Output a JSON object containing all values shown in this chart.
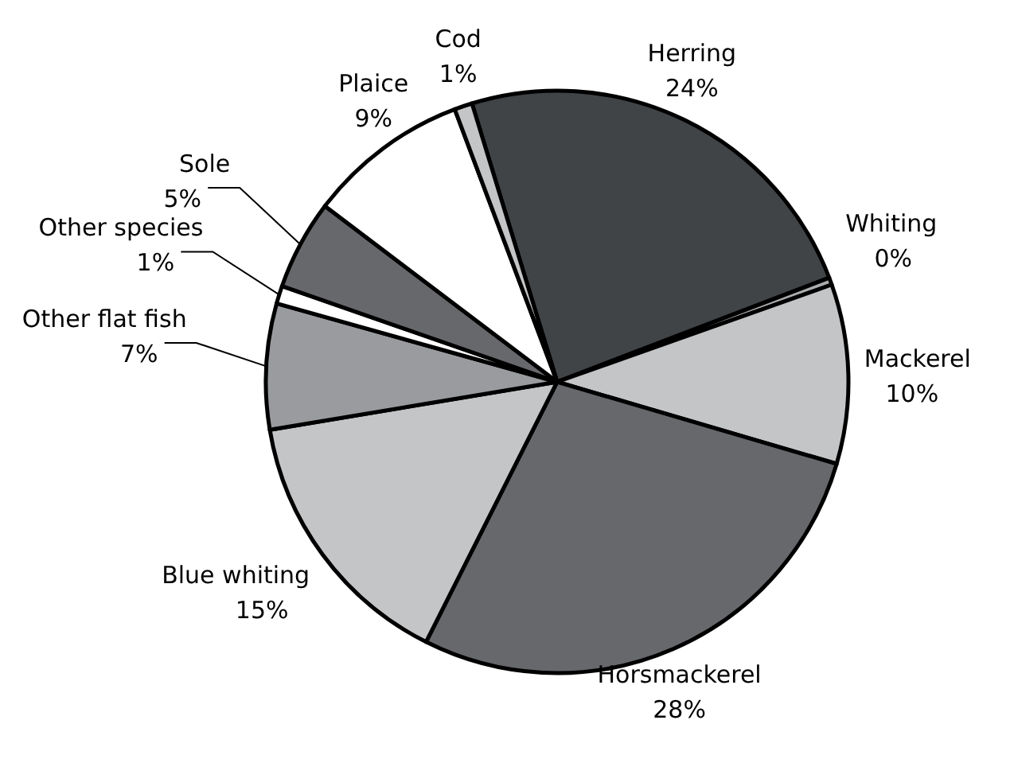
{
  "chart_data": {
    "type": "pie",
    "categories": [
      "Herring",
      "Whiting",
      "Mackerel",
      "Horsmackerel",
      "Blue whiting",
      "Other flat fish",
      "Other species",
      "Sole",
      "Plaice",
      "Cod"
    ],
    "values": [
      24,
      0.4,
      10,
      28,
      15,
      7,
      1,
      5,
      9,
      1
    ],
    "value_labels": [
      "24%",
      "0%",
      "10%",
      "28%",
      "15%",
      "7%",
      "1%",
      "5%",
      "9%",
      "1%"
    ],
    "colors": [
      "#404447",
      "#a9abad",
      "#c4c5c7",
      "#67686c",
      "#c4c5c7",
      "#999b9e",
      "#ffffff",
      "#67686c",
      "#ffffff",
      "#c4c5c7"
    ],
    "legend": false
  }
}
